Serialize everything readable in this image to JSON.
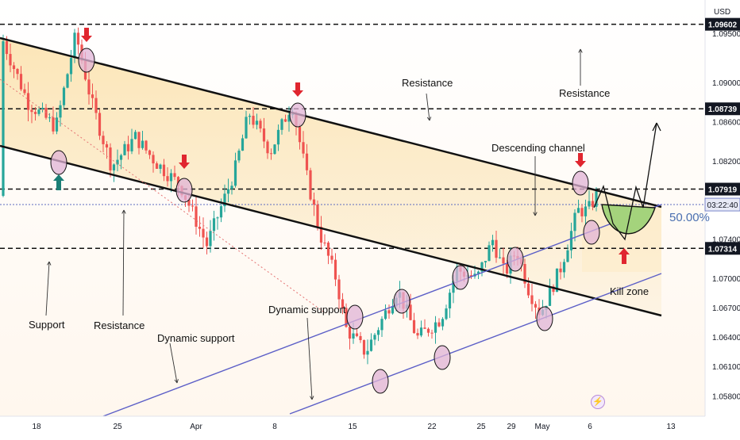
{
  "chart_data": {
    "type": "candlestick",
    "currency": "USD",
    "y_axis": {
      "range": [
        1.056,
        1.0985
      ],
      "ticks": [
        "1.09500",
        "1.09000",
        "1.08600",
        "1.08200",
        "1.07400",
        "1.07000",
        "1.06700",
        "1.06400",
        "1.06100",
        "1.05800"
      ]
    },
    "x_axis": {
      "ticks": [
        "18",
        "25",
        "Apr",
        "8",
        "15",
        "22",
        "25",
        "29",
        "May",
        "6",
        "13"
      ]
    },
    "price_tags": [
      {
        "label": "1.09602",
        "style": "dark"
      },
      {
        "label": "1.08739",
        "style": "dark"
      },
      {
        "label": "1.07919",
        "style": "dark"
      },
      {
        "label": "1.07314",
        "style": "dark"
      }
    ],
    "current": {
      "price": "1.07761",
      "countdown": "03:22:40"
    },
    "fib_label": "50.00%",
    "annotations": {
      "resistance_top": "Resistance",
      "resistance_right": "Resistance",
      "descending_channel": "Descending channel",
      "support": "Support",
      "resistance_left": "Resistance",
      "dynamic_support_low": "Dynamic support",
      "dynamic_support_mid": "Dynamic support",
      "kill_zone": "Kill zone"
    },
    "levels": [
      1.09602,
      1.08739,
      1.07919,
      1.07314
    ],
    "colors": {
      "bull": "#26a69a",
      "bear": "#ef5350",
      "channel": "#5c5fc7",
      "zone_fill": "#fde5b8",
      "arrow_red": "#e0262f",
      "arrow_teal": "#1b7f76",
      "circle_fill": "#e0b3d6",
      "green_zone": "#a4d37c"
    }
  }
}
